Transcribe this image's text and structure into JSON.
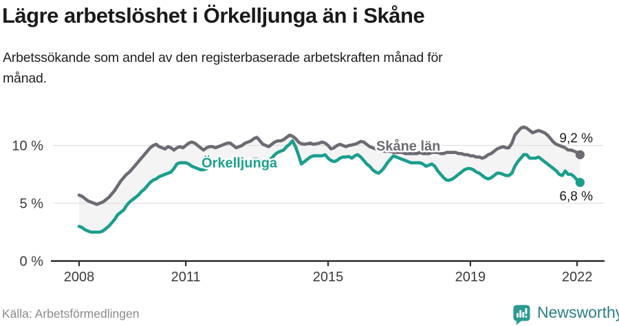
{
  "header": {
    "title": "Lägre arbetslöshet i Örkelljunga än i Skåne",
    "subtitle_line1": "Arbetssökande som andel av den registerbaserade arbetskraften månad för",
    "subtitle_line2": "månad."
  },
  "footer": {
    "source": "Källa: Arbetsförmedlingen",
    "brand": "Newsworthy",
    "brand_icon": "newsworthy-speech-bubble-bar-chart-icon"
  },
  "colors": {
    "teal_series": "#1b9e8e",
    "gray_series": "#6e6a74",
    "band_fill": "#f4f4f4",
    "grid": "#dedede",
    "axis": "#2e2e2e",
    "tick_text": "#3a3a3a",
    "value_text": "#1a1a1a",
    "logo_icon": "#2b9a90",
    "logo_text": "#2e7d84"
  },
  "chart_data": {
    "type": "line",
    "frequency": "monthly",
    "x_start": "2008-01",
    "x_end": "2022-02",
    "x_tick_years": [
      2008,
      2011,
      2015,
      2019,
      2022
    ],
    "x_tick_labels": [
      "2008",
      "2011",
      "2015",
      "2019",
      "2022"
    ],
    "y_ticks": [
      0,
      5,
      10
    ],
    "y_tick_labels": [
      "0 %",
      "5 %",
      "10 %"
    ],
    "ylim": [
      0,
      13.2
    ],
    "grid": "horizontal",
    "legend_position": "inline-on-line",
    "band_between_series": true,
    "series": [
      {
        "name": "Skåne län",
        "color": "#6e6a74",
        "end_label": "9,2 %",
        "values": [
          5.7,
          5.6,
          5.4,
          5.2,
          5.1,
          5.0,
          4.9,
          5.0,
          5.1,
          5.3,
          5.5,
          5.8,
          6.1,
          6.5,
          6.9,
          7.2,
          7.5,
          7.7,
          8.0,
          8.3,
          8.6,
          8.9,
          9.2,
          9.5,
          9.8,
          10.0,
          10.1,
          9.9,
          9.8,
          9.7,
          9.9,
          9.8,
          9.6,
          9.8,
          9.9,
          9.8,
          10.0,
          10.2,
          10.3,
          10.2,
          10.0,
          9.8,
          9.6,
          9.8,
          9.9,
          9.9,
          9.8,
          9.9,
          10.0,
          10.1,
          10.2,
          10.2,
          10.0,
          9.8,
          9.9,
          10.0,
          10.2,
          10.3,
          10.4,
          10.6,
          10.7,
          10.4,
          10.1,
          10.0,
          9.9,
          10.1,
          10.3,
          10.4,
          10.4,
          10.5,
          10.7,
          10.9,
          10.8,
          10.6,
          10.3,
          10.15,
          10.1,
          10.15,
          10.2,
          10.1,
          10.15,
          10.2,
          10.3,
          10.2,
          10.0,
          9.7,
          9.8,
          10.0,
          10.1,
          10.0,
          9.9,
          10.0,
          10.05,
          10.1,
          10.2,
          10.35,
          10.3,
          10.1,
          9.9,
          9.8,
          9.7,
          9.6,
          9.6,
          9.5,
          9.5,
          9.5,
          9.4,
          9.4,
          9.4,
          9.4,
          9.3,
          9.3,
          9.3,
          9.3,
          9.3,
          9.4,
          9.3,
          9.3,
          9.3,
          9.4,
          9.4,
          9.4,
          9.3,
          9.3,
          9.4,
          9.4,
          9.4,
          9.4,
          9.3,
          9.3,
          9.2,
          9.2,
          9.1,
          9.1,
          9.0,
          9.0,
          8.9,
          9.0,
          9.2,
          9.3,
          9.5,
          9.7,
          9.8,
          9.9,
          9.8,
          9.8,
          10.2,
          10.9,
          11.2,
          11.5,
          11.6,
          11.5,
          11.3,
          11.1,
          11.2,
          11.3,
          11.2,
          11.1,
          10.9,
          10.6,
          10.3,
          10.1,
          10.0,
          9.9,
          9.8,
          9.6,
          9.6,
          9.5,
          9.4,
          9.2
        ]
      },
      {
        "name": "Örkelljunga",
        "color": "#1b9e8e",
        "end_label": "6,8 %",
        "values": [
          3.0,
          2.9,
          2.7,
          2.6,
          2.5,
          2.5,
          2.5,
          2.5,
          2.6,
          2.8,
          3.0,
          3.3,
          3.6,
          4.0,
          4.2,
          4.4,
          4.8,
          5.1,
          5.3,
          5.5,
          5.7,
          6.0,
          6.2,
          6.5,
          6.8,
          7.0,
          7.1,
          7.3,
          7.4,
          7.5,
          7.6,
          7.7,
          8.0,
          8.4,
          8.5,
          8.5,
          8.5,
          8.4,
          8.2,
          8.1,
          8.0,
          7.9,
          7.9,
          8.0,
          8.2,
          8.3,
          8.3,
          8.4,
          8.5,
          8.6,
          8.7,
          8.6,
          8.5,
          8.4,
          8.5,
          8.5,
          8.6,
          8.7,
          8.7,
          8.8,
          8.8,
          8.7,
          8.6,
          8.6,
          8.7,
          8.9,
          9.2,
          9.4,
          9.5,
          9.6,
          9.9,
          10.1,
          10.4,
          9.9,
          9.2,
          8.4,
          8.6,
          8.8,
          9.0,
          9.1,
          9.1,
          9.1,
          9.1,
          9.2,
          8.9,
          8.7,
          8.6,
          8.7,
          8.9,
          9.0,
          9.0,
          9.05,
          8.9,
          9.1,
          9.2,
          9.0,
          8.7,
          8.4,
          8.2,
          7.9,
          7.7,
          7.6,
          7.8,
          8.1,
          8.5,
          8.8,
          9.1,
          9.0,
          8.9,
          8.8,
          8.7,
          8.6,
          8.5,
          8.5,
          8.5,
          8.5,
          8.4,
          8.2,
          8.3,
          8.4,
          8.2,
          7.8,
          7.5,
          7.2,
          7.0,
          7.0,
          7.1,
          7.3,
          7.5,
          7.7,
          7.9,
          8.0,
          8.0,
          7.9,
          7.7,
          7.6,
          7.4,
          7.2,
          7.1,
          7.2,
          7.4,
          7.6,
          7.6,
          7.5,
          7.4,
          7.4,
          7.6,
          8.2,
          8.6,
          8.9,
          9.2,
          9.2,
          8.9,
          8.9,
          8.9,
          9.0,
          8.8,
          8.6,
          8.4,
          8.2,
          8.0,
          7.8,
          7.5,
          7.4,
          7.8,
          7.5,
          7.5,
          7.3,
          7.0,
          6.8
        ]
      }
    ]
  }
}
